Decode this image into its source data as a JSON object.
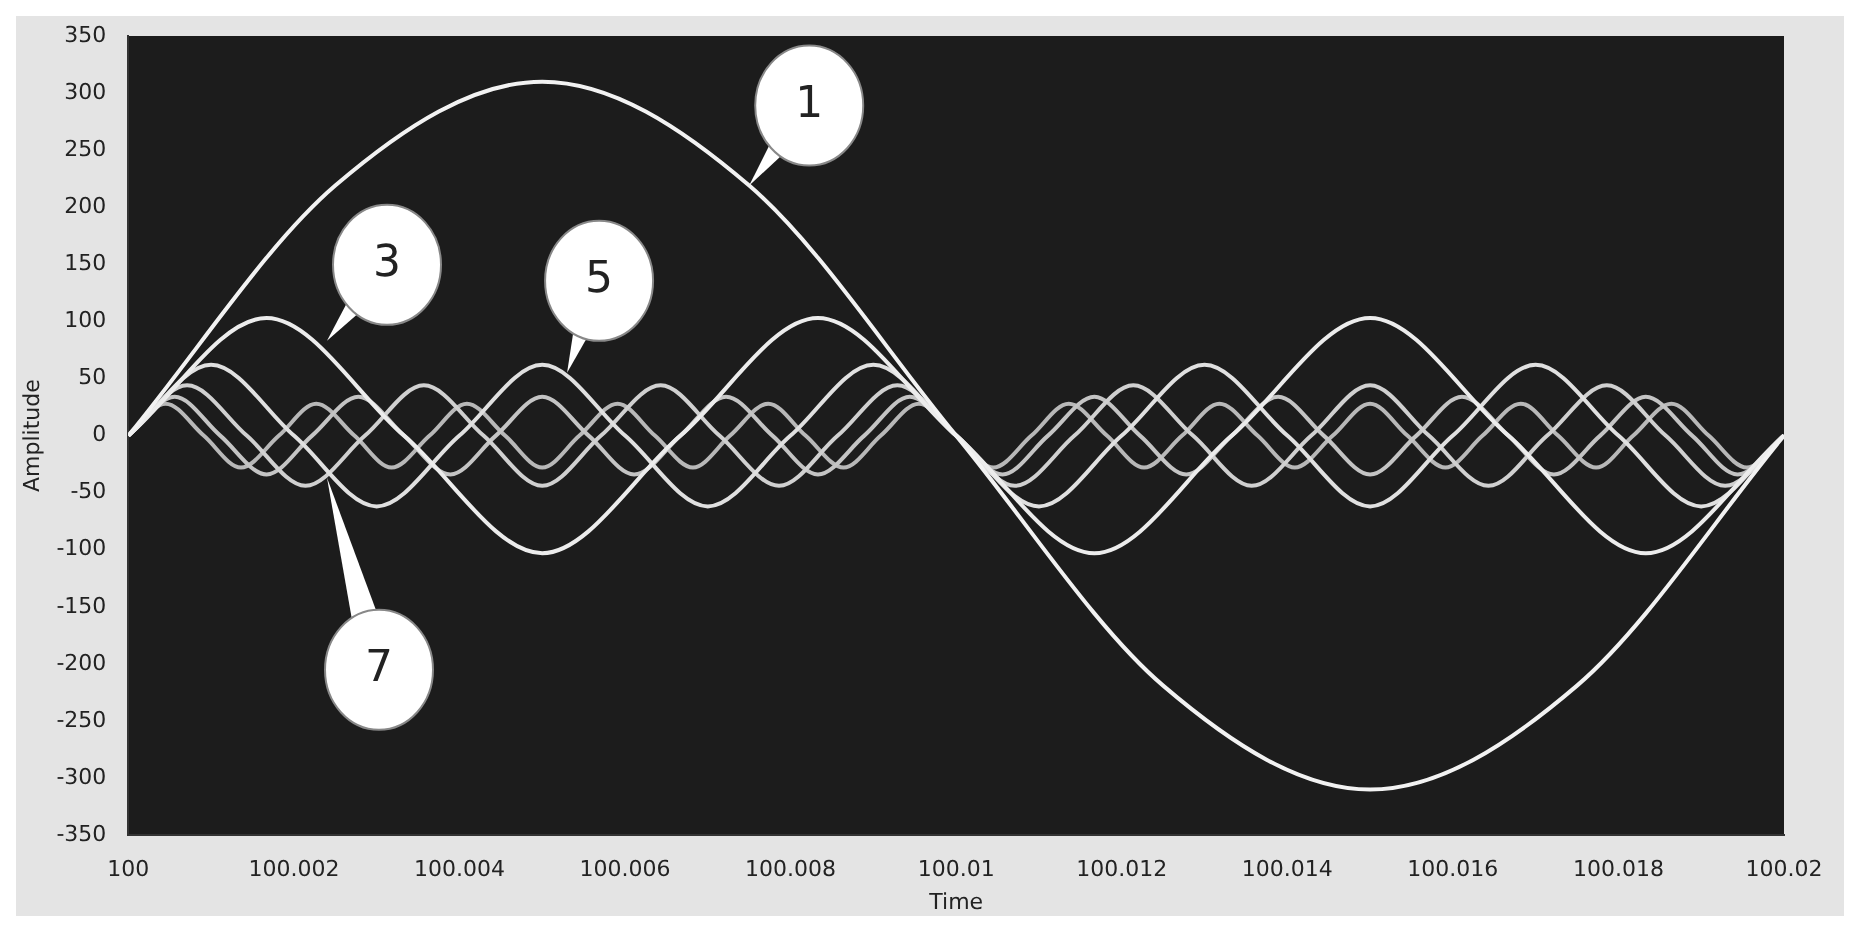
{
  "chart_data": {
    "type": "line",
    "xlabel": "Time",
    "ylabel": "Amplitude",
    "xlim": [
      100,
      100.02
    ],
    "xticks": [
      100,
      100.002,
      100.004,
      100.006,
      100.008,
      100.01,
      100.012,
      100.014,
      100.016,
      100.018,
      100.02
    ],
    "ylim": [
      -350,
      350
    ],
    "yticks": [
      -350,
      -300,
      -250,
      -200,
      -150,
      -100,
      -50,
      0,
      50,
      100,
      150,
      200,
      250,
      300,
      350
    ],
    "grid": false,
    "legend": false,
    "marker": "none",
    "line_style": "solid",
    "series": [
      {
        "color": "#f2f2f2",
        "x": [
          100,
          100.0025,
          100.005,
          100.0075,
          100.01,
          100.0125,
          100.015,
          100.0175,
          100.02
        ],
        "values": [
          0,
          219,
          310,
          219,
          0,
          -219,
          -310,
          -219,
          0
        ]
      },
      {
        "color": "#ececec",
        "x": [
          100,
          100.00167,
          100.00333,
          100.005,
          100.00667,
          100.00833,
          100.01,
          100.01167,
          100.01333,
          100.015,
          100.01667,
          100.01833,
          100.02
        ],
        "values": [
          0,
          103,
          0,
          -103,
          0,
          103,
          0,
          -103,
          0,
          103,
          0,
          -103,
          0
        ]
      },
      {
        "color": "#e0e0e0",
        "x": [
          100,
          100.001,
          100.002,
          100.003,
          100.004,
          100.005,
          100.006,
          100.007,
          100.008,
          100.009,
          100.01,
          100.011,
          100.012,
          100.013,
          100.014,
          100.015,
          100.016,
          100.017,
          100.018,
          100.019,
          100.02
        ],
        "values": [
          0,
          62,
          0,
          -62,
          0,
          62,
          0,
          -62,
          0,
          62,
          0,
          -62,
          0,
          62,
          0,
          -62,
          0,
          62,
          0,
          -62,
          0
        ]
      },
      {
        "color": "#d0d0d0",
        "x": [
          100,
          100.00071,
          100.00143,
          100.00214,
          100.00286,
          100.00357,
          100.00429,
          100.005,
          100.00571,
          100.00643,
          100.00714,
          100.00786,
          100.00857,
          100.00929,
          100.01,
          100.01071,
          100.01143,
          100.01214,
          100.01286,
          100.01357,
          100.01429,
          100.015,
          100.01571,
          100.01643,
          100.01714,
          100.01786,
          100.01857,
          100.01929,
          100.02
        ],
        "values": [
          0,
          44,
          0,
          -44,
          0,
          44,
          0,
          -44,
          0,
          44,
          0,
          -44,
          0,
          44,
          0,
          -44,
          0,
          44,
          0,
          -44,
          0,
          44,
          0,
          -44,
          0,
          44,
          0,
          -44,
          0
        ]
      },
      {
        "color": "#c4c4c4",
        "x": [
          100,
          100.00056,
          100.00111,
          100.00167,
          100.00222,
          100.00278,
          100.00333,
          100.00389,
          100.00444,
          100.005,
          100.00556,
          100.00611,
          100.00667,
          100.00722,
          100.00778,
          100.00833,
          100.00889,
          100.00944,
          100.01,
          100.01056,
          100.01111,
          100.01167,
          100.01222,
          100.01278,
          100.01333,
          100.01389,
          100.01444,
          100.015,
          100.01556,
          100.01611,
          100.01667,
          100.01722,
          100.01778,
          100.01833,
          100.01889,
          100.01944,
          100.02
        ],
        "values": [
          0,
          34,
          0,
          -34,
          0,
          34,
          0,
          -34,
          0,
          34,
          0,
          -34,
          0,
          34,
          0,
          -34,
          0,
          34,
          0,
          -34,
          0,
          34,
          0,
          -34,
          0,
          34,
          0,
          -34,
          0,
          34,
          0,
          -34,
          0,
          34,
          0,
          -34,
          0
        ]
      },
      {
        "color": "#b8b8b8",
        "x": [
          100,
          100.00045,
          100.00091,
          100.00136,
          100.00182,
          100.00227,
          100.00273,
          100.00318,
          100.00364,
          100.00409,
          100.00455,
          100.005,
          100.00545,
          100.00591,
          100.00636,
          100.00682,
          100.00727,
          100.00773,
          100.00818,
          100.00864,
          100.00909,
          100.00955,
          100.01,
          100.01045,
          100.01091,
          100.01136,
          100.01182,
          100.01227,
          100.01273,
          100.01318,
          100.01364,
          100.01409,
          100.01455,
          100.015,
          100.01545,
          100.01591,
          100.01636,
          100.01682,
          100.01727,
          100.01773,
          100.01818,
          100.01864,
          100.01909,
          100.01955,
          100.02
        ],
        "values": [
          0,
          28,
          0,
          -28,
          0,
          28,
          0,
          -28,
          0,
          28,
          0,
          -28,
          0,
          28,
          0,
          -28,
          0,
          28,
          0,
          -28,
          0,
          28,
          0,
          -28,
          0,
          28,
          0,
          -28,
          0,
          28,
          0,
          -28,
          0,
          28,
          0,
          -28,
          0,
          28,
          0,
          -28,
          0,
          28,
          0,
          -28,
          0
        ]
      }
    ],
    "annotations": [
      {
        "text": "1",
        "x": 100.0075,
        "y": 219
      },
      {
        "text": "3",
        "x": 100.0024,
        "y": 83
      },
      {
        "text": "5",
        "x": 100.0053,
        "y": 55
      },
      {
        "text": "7",
        "x": 100.0024,
        "y": -37
      }
    ]
  }
}
